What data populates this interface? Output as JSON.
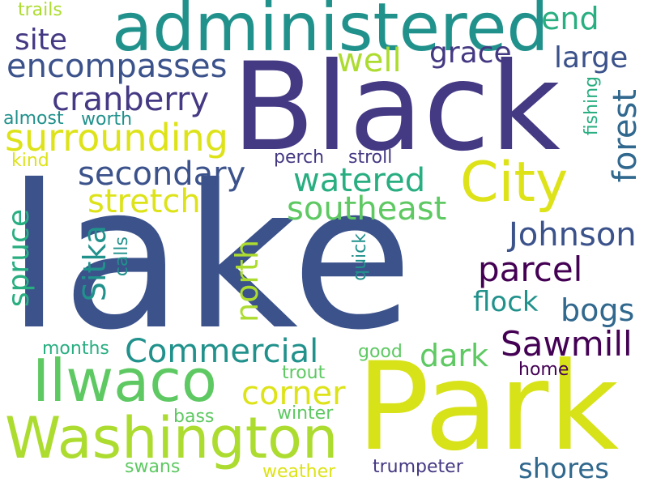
{
  "words": {
    "lake": "lake",
    "black": "Black",
    "park": "Park",
    "administered": "administered",
    "washington": "Washington",
    "ilwaco": "Ilwaco",
    "city": "City",
    "surrounding": "surrounding",
    "encompasses": "encompasses",
    "cranberry": "cranberry",
    "commercial": "Commercial",
    "sawmill": "Sawmill",
    "johnson": "Johnson",
    "secondary": "secondary",
    "southeast": "southeast",
    "watered": "watered",
    "stretch": "stretch",
    "forest": "forest",
    "parcel": "parcel",
    "north": "north",
    "sitka": "Sitka",
    "spruce": "spruce",
    "bogs": "bogs",
    "flock": "flock",
    "dark": "dark",
    "corner": "corner",
    "shores": "shores",
    "large": "large",
    "grace": "grace",
    "site": "site",
    "well": "well",
    "end": "end",
    "trails": "trails",
    "almost": "almost",
    "worth": "worth",
    "kind": "kind",
    "perch": "perch",
    "stroll": "stroll",
    "fishing": "fishing",
    "calls": "calls",
    "quick": "quick",
    "good": "good",
    "months": "months",
    "trout": "trout",
    "home": "home",
    "winter": "winter",
    "bass": "bass",
    "swans": "swans",
    "weather": "weather",
    "trumpeter": "trumpeter"
  },
  "palette": {
    "background": "#ffffff",
    "colors": [
      "#443983",
      "#3b528b",
      "#31688e",
      "#21918c",
      "#28ae80",
      "#5ec962",
      "#addc30",
      "#dde318",
      "#440154"
    ]
  }
}
